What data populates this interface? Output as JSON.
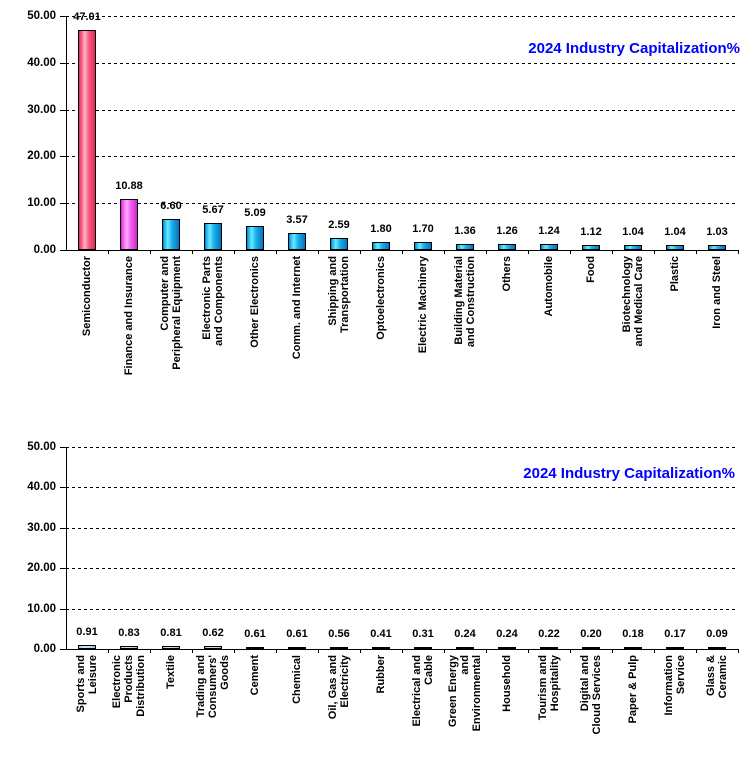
{
  "page": {
    "background": "#ffffff"
  },
  "colors": {
    "title_blue": "#0000ff",
    "axis_black": "#000000",
    "bar_outline": "#000000",
    "bar_pink_edge": "#e02d5a",
    "bar_pink_highlight": "#ffb3c8",
    "bar_magenta_edge": "#d429d4",
    "bar_magenta_highlight": "#ffaaff",
    "bar_cyan_edge": "#0a6fc0",
    "bar_cyan_highlight": "#6ee8ff",
    "bar_paleblue_fill": "#c5dff4"
  },
  "chart_data": [
    {
      "type": "bar",
      "title": "2024 Industry Capitalization%",
      "xlabel": "",
      "ylabel": "",
      "ylim": [
        0,
        50
      ],
      "ytick_step": 10,
      "ytick_labels": [
        "50.00",
        "40.00",
        "30.00",
        "20.00",
        "10.00",
        "0.00"
      ],
      "grid": "dashed-horizontal",
      "legend": "none",
      "categories": [
        "Semiconductor",
        "Finance and Insurance",
        "Computer and Peripheral Equipment",
        "Electronic Parts and Components",
        "Other Electronics",
        "Comm. and Internet",
        "Shipping and Transportation",
        "Optoelectronics",
        "Electric Machinery",
        "Building Material and Construction",
        "Others",
        "Automobile",
        "Food",
        "Biotechnology and Medical Care",
        "Plastic",
        "Iron and Steel"
      ],
      "category_label_lines": [
        "Semiconductor",
        "Finance and Insurance",
        "Computer and\nPeripheral Equipment",
        "Electronic Parts\nand Components",
        "Other Electronics",
        "Comm. and Internet",
        "Shipping and\nTransportation",
        "Optoelectronics",
        "Electric Machinery",
        "Building Material\nand Construction",
        "Others",
        "Automobile",
        "Food",
        "Biotechnology\nand Medical Care",
        "Plastic",
        "Iron and Steel"
      ],
      "values": [
        47.01,
        10.88,
        6.6,
        5.67,
        5.09,
        3.57,
        2.59,
        1.8,
        1.7,
        1.36,
        1.26,
        1.24,
        1.12,
        1.04,
        1.04,
        1.03
      ],
      "data_labels": [
        "47.01",
        "10.88",
        "6.60",
        "5.67",
        "5.09",
        "3.57",
        "2.59",
        "1.80",
        "1.70",
        "1.36",
        "1.26",
        "1.24",
        "1.12",
        "1.04",
        "1.04",
        "1.03"
      ],
      "bar_colors": [
        "pink",
        "magenta",
        "cyan",
        "cyan",
        "cyan",
        "cyan",
        "cyan",
        "cyan",
        "cyan",
        "cyan",
        "cyan",
        "cyan",
        "cyan",
        "cyan",
        "cyan",
        "cyan"
      ]
    },
    {
      "type": "bar",
      "title": "2024 Industry Capitalization%",
      "xlabel": "",
      "ylabel": "",
      "ylim": [
        0,
        50
      ],
      "ytick_step": 10,
      "ytick_labels": [
        "50.00",
        "40.00",
        "30.00",
        "20.00",
        "10.00",
        "0.00"
      ],
      "grid": "dashed-horizontal",
      "legend": "none",
      "categories": [
        "Sports and Leisure",
        "Electronic Products Distribution",
        "Textile",
        "Trading and Consumers' Goods",
        "Cement",
        "Chemical",
        "Oil, Gas and Electricity",
        "Rubber",
        "Electrical and Cable",
        "Green Energy and Environmental",
        "Household",
        "Tourism and Hospitality",
        "Digital and Cloud Services",
        "Paper & Pulp",
        "Information Service",
        "Glass & Ceramic"
      ],
      "category_label_lines": [
        "Sports and\nLeisure",
        "Electronic\nProducts\nDistribution",
        "Textile",
        "Trading and\nConsumers'\nGoods",
        "Cement",
        "Chemical",
        "Oil, Gas and\nElectricity",
        "Rubber",
        "Electrical and\nCable",
        "Green Energy\nand\nEnvironmental",
        "Household",
        "Tourism and\nHospitality",
        "Digital and\nCloud Services",
        "Paper & Pulp",
        "Information\nService",
        "Glass &\nCeramic"
      ],
      "values": [
        0.91,
        0.83,
        0.81,
        0.62,
        0.61,
        0.61,
        0.56,
        0.41,
        0.31,
        0.24,
        0.24,
        0.22,
        0.2,
        0.18,
        0.17,
        0.09
      ],
      "data_labels": [
        "0.91",
        "0.83",
        "0.81",
        "0.62",
        "0.61",
        "0.61",
        "0.56",
        "0.41",
        "0.31",
        "0.24",
        "0.24",
        "0.22",
        "0.20",
        "0.18",
        "0.17",
        "0.09"
      ],
      "bar_colors": [
        "paleblue",
        "paleblue",
        "paleblue",
        "paleblue",
        "paleblue",
        "paleblue",
        "paleblue",
        "paleblue",
        "paleblue",
        "paleblue",
        "paleblue",
        "paleblue",
        "paleblue",
        "paleblue",
        "paleblue",
        "paleblue"
      ]
    }
  ]
}
